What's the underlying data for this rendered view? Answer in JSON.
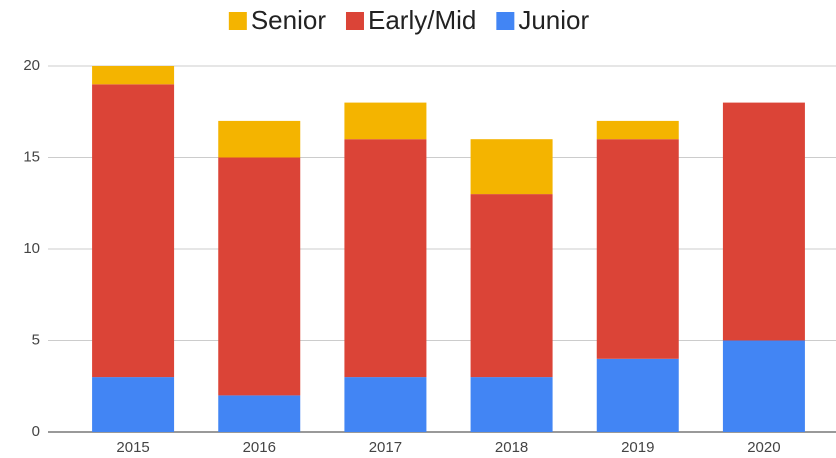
{
  "chart_data": {
    "type": "stacked_bar",
    "categories": [
      "2015",
      "2016",
      "2017",
      "2018",
      "2019",
      "2020"
    ],
    "series": [
      {
        "name": "Junior",
        "color": "#4285f4",
        "values": [
          3,
          2,
          3,
          3,
          4,
          5
        ]
      },
      {
        "name": "Early/Mid",
        "color": "#db4437",
        "values": [
          16,
          13,
          13,
          10,
          12,
          13
        ]
      },
      {
        "name": "Senior",
        "color": "#f4b400",
        "values": [
          1,
          2,
          2,
          3,
          1,
          0
        ]
      }
    ],
    "ylim": [
      0,
      20
    ],
    "yticks": [
      0,
      5,
      10,
      15,
      20
    ],
    "grid": true,
    "legend": "top"
  }
}
